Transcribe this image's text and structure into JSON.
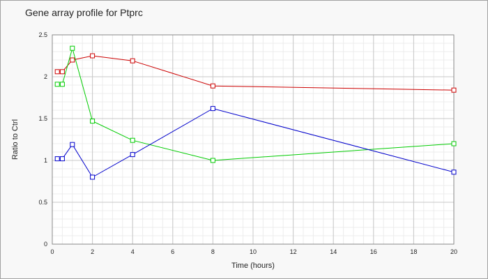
{
  "chart_data": {
    "type": "line",
    "title": "Gene array profile for Ptprc",
    "xlabel": "Time (hours)",
    "ylabel": "Ratio to Ctrl",
    "xlim": [
      0,
      20
    ],
    "ylim": [
      0,
      2.5
    ],
    "xticks": [
      0,
      2,
      4,
      6,
      8,
      10,
      12,
      14,
      16,
      18,
      20
    ],
    "yticks": [
      0,
      0.5,
      1,
      1.5,
      2,
      2.5
    ],
    "ytick_labels": [
      "0",
      "0.5",
      "1",
      "1.5",
      "2",
      "2.5"
    ],
    "grid": true,
    "minor_grid": true,
    "legend": "none",
    "series": [
      {
        "color": "#cc0000",
        "x": [
          0.25,
          0.5,
          1,
          2,
          4,
          8,
          20
        ],
        "y": [
          2.06,
          2.06,
          2.2,
          2.25,
          2.19,
          1.89,
          1.84
        ]
      },
      {
        "color": "#00cc00",
        "x": [
          0.25,
          0.5,
          1,
          2,
          4,
          8,
          20
        ],
        "y": [
          1.91,
          1.91,
          2.34,
          1.47,
          1.24,
          1.0,
          1.2
        ]
      },
      {
        "color": "#0000cc",
        "x": [
          0.25,
          0.5,
          1,
          2,
          4,
          8,
          20
        ],
        "y": [
          1.02,
          1.02,
          1.19,
          0.8,
          1.07,
          1.62,
          0.86
        ]
      }
    ]
  }
}
